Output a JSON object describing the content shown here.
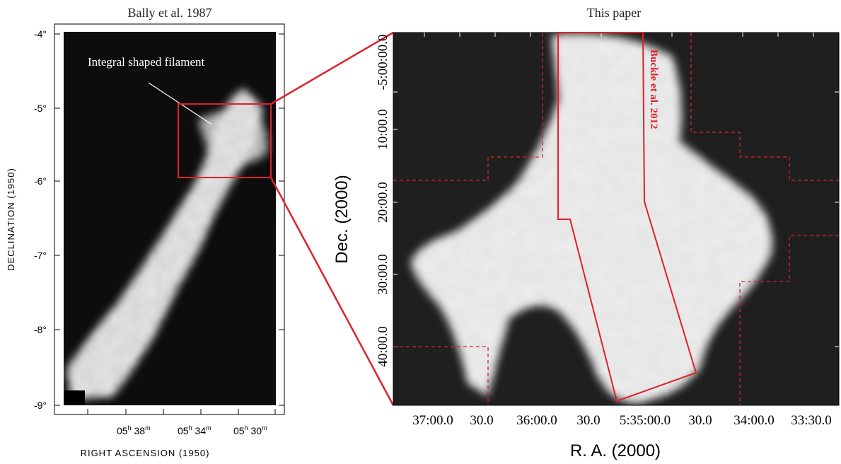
{
  "left_panel": {
    "title": "Bally et al. 1987",
    "annotation": "Integral shaped filament",
    "y_axis_label": "DECLINATION (1950)",
    "x_axis_label": "RIGHT ASCENSION (1950)",
    "y_ticks": [
      "-4°",
      "-5°",
      "-6°",
      "-7°",
      "-8°",
      "-9°"
    ],
    "x_ticks": [
      {
        "h": "05",
        "m": "38"
      },
      {
        "h": "05",
        "m": "34"
      },
      {
        "h": "05",
        "m": "30"
      }
    ]
  },
  "right_panel": {
    "title": "This paper",
    "y_axis_label": "Dec. (2000)",
    "x_axis_label": "R. A. (2000)",
    "y_ticks": [
      "-5:00:00.0",
      "10:00.0",
      "20:00.0",
      "30:00.0",
      "40:00.0"
    ],
    "x_ticks": [
      "37:00.0",
      "30.0",
      "36:00.0",
      "30.0",
      "5:35:00.0",
      "30.0",
      "34:00.0",
      "33:30.0"
    ],
    "overlay_label": "Buckle et al. 2012"
  },
  "colors": {
    "highlight": "#e0202a",
    "panel_dark": "#1f1f1f"
  }
}
